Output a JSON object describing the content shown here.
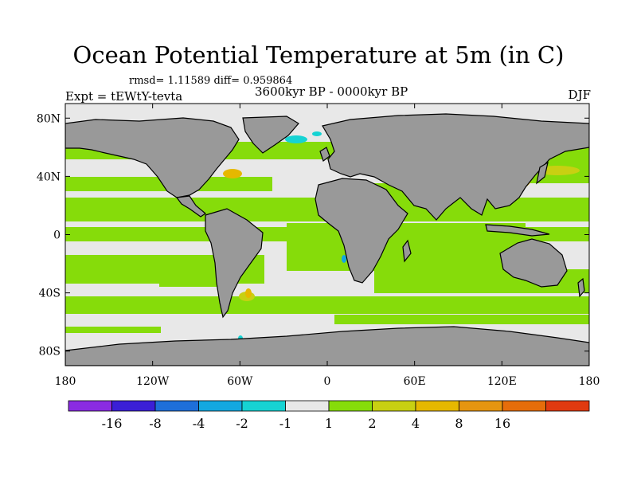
{
  "title": "Ocean Potential Temperature at 5m (in C)",
  "stats": "rmsd= 1.11589 diff= 0.959864",
  "experiment": "Expt = tEWtY-tevta",
  "period": "3600kyr BP - 0000kyr BP",
  "season": "DJF",
  "lat_labels": [
    "80N",
    "40N",
    "0",
    "40S",
    "80S"
  ],
  "lat_values": [
    80,
    40,
    0,
    -40,
    -80
  ],
  "lon_labels": [
    "180",
    "120W",
    "60W",
    "0",
    "60E",
    "120E",
    "180"
  ],
  "lon_values": [
    -180,
    -120,
    -60,
    0,
    60,
    120,
    180
  ],
  "colorbar": {
    "colors": [
      "#8a2be2",
      "#3b1fd6",
      "#1e6fd9",
      "#13a8e0",
      "#16d3d3",
      "#e8e8e8",
      "#86dc0a",
      "#c8d012",
      "#e6b800",
      "#e69510",
      "#e66d0a",
      "#e03a10"
    ],
    "labels": [
      "-16",
      "-8",
      "-4",
      "-2",
      "-1",
      "1",
      "2",
      "4",
      "8",
      "16"
    ]
  },
  "colors": {
    "land": "#999999",
    "zero": "#e8e8e8",
    "warm1": "#86dc0a",
    "warm2": "#c8d012",
    "warm3": "#e6b800",
    "warm4": "#e69510",
    "cool1": "#16d3d3",
    "cool2": "#13a8e0"
  }
}
